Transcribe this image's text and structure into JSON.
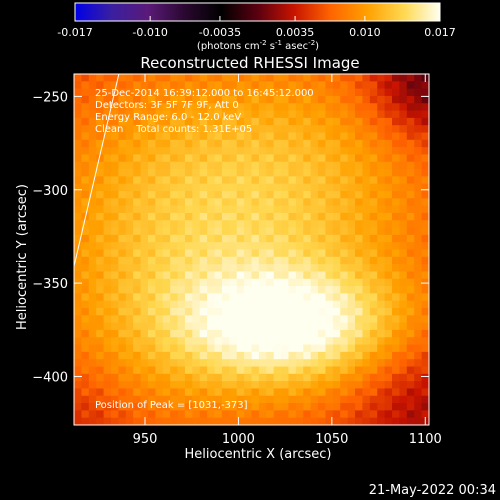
{
  "colorbar": {
    "ticks": [
      "-0.017",
      "-0.010",
      "-0.0035",
      "0.0035",
      "0.010",
      "0.017"
    ],
    "min": -0.017,
    "max": 0.017,
    "units_prefix": "(photons cm",
    "units_exp1": "-2",
    "units_mid": " s",
    "units_exp2": "-1",
    "units_mid2": " asec",
    "units_exp3": "-2",
    "units_suffix": ")",
    "colors": [
      "#0000e8",
      "#3a1fa0",
      "#5a1a78",
      "#2a0830",
      "#000000",
      "#5a0010",
      "#c81400",
      "#ff6400",
      "#ffa000",
      "#ffd850",
      "#fffff0"
    ]
  },
  "chart_data": {
    "type": "heatmap",
    "title": "Reconstructed RHESSI Image",
    "xlabel": "Heliocentric X (arcsec)",
    "ylabel": "Heliocentric Y (arcsec)",
    "xlim": [
      912,
      1102
    ],
    "ylim": [
      -426,
      -238
    ],
    "xticks": [
      950,
      1000,
      1050,
      1100
    ],
    "yticks": [
      -250,
      -300,
      -350,
      -400
    ],
    "peak": {
      "x": 1031,
      "y": -373
    },
    "limb_x": [
      912,
      936
    ],
    "limb_y": [
      -341,
      -238
    ]
  },
  "annotations": {
    "time_range": "25-Dec-2014 16:39:12.000 to 16:45:12.000",
    "detectors": "Detectors: 3F 5F 7F 9F, Att 0",
    "energy": "Energy Range: 6.0 - 12.0 keV",
    "method": "Clean    Total counts: 1.31E+05",
    "peak_label": "Position of Peak = [1031,-373]"
  },
  "footer": {
    "date": "21-May-2022 00:34"
  }
}
